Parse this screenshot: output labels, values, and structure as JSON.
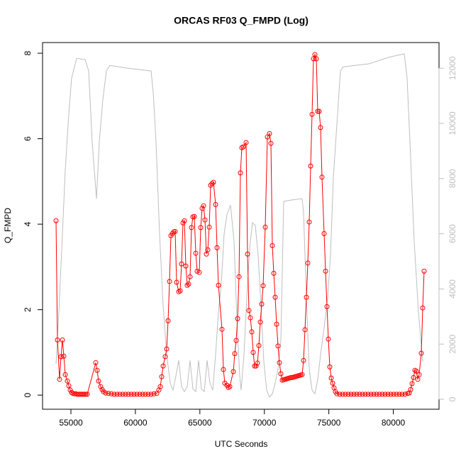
{
  "chart_data": {
    "type": "line",
    "title": "ORCAS RF03 Q_FMPD (Log)",
    "x_label": "UTC Seconds",
    "y_label": "Q_FMPD",
    "xlim": [
      52800,
      83545
    ],
    "xticks": [
      55000,
      60000,
      65000,
      70000,
      75000,
      80000
    ],
    "ylim": [
      -0.33,
      8.25
    ],
    "yticks": [
      0,
      2,
      4,
      6,
      8
    ],
    "y2lim": [
      -360,
      12930
    ],
    "y2ticks": [
      0,
      2000,
      4000,
      6000,
      8000,
      10000,
      12000
    ],
    "y2_color": "#bebebe",
    "series": [
      {
        "color": "#bebebe",
        "axis": "y2",
        "markers": false,
        "x": [
          53845,
          54065,
          54340,
          54560,
          54835,
          55055,
          55440,
          56100,
          56375,
          56650,
          56980,
          57200,
          57475,
          57750,
          58025,
          59400,
          61215,
          61380,
          61600,
          61875,
          62150,
          62425,
          62700,
          62920,
          63140,
          63360,
          63580,
          63800,
          64020,
          64240,
          64460,
          64680,
          64900,
          65120,
          65340,
          65560,
          65780,
          66000,
          66220,
          66440,
          66660,
          66880,
          67100,
          67375,
          67650,
          67870,
          68090,
          68200,
          68420,
          68640,
          68860,
          69080,
          69300,
          69520,
          69740,
          69960,
          70180,
          70400,
          70620,
          70840,
          71060,
          71280,
          71500,
          72050,
          72930,
          73040,
          73260,
          73480,
          73700,
          73920,
          74140,
          74360,
          74580,
          74910,
          75130,
          75350,
          75680,
          75900,
          76120,
          78100,
          79750,
          80850,
          81070,
          81290,
          81620,
          81950,
          82280
        ],
        "values": [
          1285,
          3160,
          5990,
          8300,
          10350,
          11640,
          12360,
          12310,
          11900,
          9330,
          7270,
          9330,
          10870,
          11900,
          12100,
          12000,
          11900,
          11130,
          9330,
          5990,
          3420,
          1620,
          590,
          330,
          850,
          1410,
          460,
          280,
          460,
          1410,
          380,
          280,
          1410,
          380,
          280,
          1410,
          590,
          330,
          1620,
          3160,
          4190,
          5990,
          6700,
          7040,
          5730,
          2900,
          850,
          330,
          1620,
          3680,
          5470,
          6400,
          6300,
          5220,
          3420,
          1360,
          330,
          80,
          200,
          590,
          1100,
          2130,
          7170,
          7220,
          7270,
          6760,
          3680,
          1100,
          330,
          200,
          720,
          1620,
          2390,
          3680,
          5220,
          8040,
          10360,
          11900,
          12050,
          12160,
          12410,
          12520,
          11640,
          9330,
          5730,
          3160,
          1360
        ]
      },
      {
        "color": "#ff0000",
        "markers": true,
        "x": [
          53845,
          53955,
          54120,
          54230,
          54340,
          54450,
          54560,
          54725,
          54835,
          54945,
          55055,
          55165,
          55275,
          55385,
          55495,
          55605,
          55715,
          55825,
          55935,
          56045,
          56155,
          56265,
          56925,
          57035,
          57145,
          57310,
          57420,
          57530,
          57695,
          57915,
          58135,
          58355,
          58575,
          58795,
          59015,
          59235,
          59455,
          59675,
          59895,
          60115,
          60335,
          60555,
          60775,
          60995,
          61215,
          61435,
          61655,
          61820,
          61930,
          62040,
          62150,
          62315,
          62425,
          62535,
          62645,
          62755,
          62865,
          62975,
          63085,
          63195,
          63360,
          63470,
          63580,
          63690,
          63800,
          63910,
          64020,
          64130,
          64240,
          64350,
          64460,
          64570,
          64680,
          64790,
          64955,
          65065,
          65175,
          65285,
          65395,
          65505,
          65615,
          65725,
          65835,
          65945,
          66055,
          66220,
          66330,
          66440,
          66715,
          66825,
          66935,
          67100,
          67210,
          67320,
          67595,
          67705,
          67815,
          67925,
          68035,
          68145,
          68255,
          68365,
          68585,
          68695,
          68805,
          68915,
          69025,
          69135,
          69245,
          69355,
          69465,
          69575,
          69685,
          69795,
          69905,
          70070,
          70235,
          70400,
          70510,
          70620,
          70730,
          70840,
          70950,
          71060,
          71170,
          71280,
          71390,
          71500,
          71610,
          71720,
          71830,
          71940,
          72050,
          72160,
          72270,
          72380,
          72490,
          72600,
          72710,
          72820,
          72930,
          73040,
          73150,
          73260,
          73370,
          73480,
          73590,
          73700,
          73810,
          73920,
          74030,
          74140,
          74250,
          74360,
          74470,
          74635,
          74745,
          74855,
          74965,
          75075,
          75185,
          75295,
          75405,
          75515,
          75625,
          75845,
          76065,
          76285,
          76505,
          76725,
          76945,
          77165,
          77385,
          77605,
          77825,
          78045,
          78265,
          78485,
          78705,
          78925,
          79145,
          79365,
          79585,
          79805,
          80025,
          80245,
          80465,
          80685,
          80905,
          81125,
          81235,
          81345,
          81455,
          81565,
          81675,
          81785,
          81895,
          82005,
          82170,
          82280,
          82390
        ],
        "values": [
          4.08,
          1.29,
          0.37,
          0.9,
          1.29,
          0.91,
          0.48,
          0.33,
          0.22,
          0.12,
          0.06,
          0.04,
          0.03,
          0.03,
          0.02,
          0.02,
          0.02,
          0.02,
          0.02,
          0.02,
          0.02,
          0.02,
          0.76,
          0.58,
          0.33,
          0.2,
          0.13,
          0.08,
          0.05,
          0.04,
          0.03,
          0.02,
          0.02,
          0.02,
          0.02,
          0.02,
          0.02,
          0.02,
          0.02,
          0.02,
          0.02,
          0.02,
          0.02,
          0.02,
          0.02,
          0.03,
          0.04,
          0.12,
          0.2,
          0.43,
          0.68,
          0.9,
          1.08,
          1.74,
          2.66,
          3.73,
          3.78,
          3.82,
          3.83,
          2.64,
          2.42,
          2.44,
          3.07,
          4.03,
          4.08,
          3.02,
          2.57,
          2.6,
          2.77,
          3.92,
          4.17,
          4.18,
          3.32,
          2.9,
          2.87,
          3.92,
          4.37,
          4.43,
          4.1,
          3.3,
          3.4,
          3.93,
          4.91,
          4.95,
          4.98,
          4.46,
          3.45,
          2.57,
          1.54,
          0.6,
          0.28,
          0.23,
          0.18,
          0.2,
          0.55,
          0.97,
          1.28,
          1.79,
          2.77,
          5.2,
          5.79,
          5.81,
          5.91,
          3.3,
          1.98,
          1.81,
          1.48,
          1.0,
          0.68,
          0.68,
          0.75,
          1.16,
          1.71,
          2.13,
          2.56,
          3.93,
          6.04,
          6.12,
          5.89,
          3.5,
          2.85,
          2.29,
          1.66,
          1.15,
          0.76,
          0.5,
          0.35,
          0.36,
          0.37,
          0.38,
          0.39,
          0.4,
          0.41,
          0.41,
          0.42,
          0.43,
          0.44,
          0.45,
          0.46,
          0.47,
          0.48,
          0.81,
          1.53,
          2.29,
          3.09,
          4.05,
          5.36,
          6.57,
          7.87,
          7.97,
          7.87,
          6.64,
          6.64,
          6.26,
          5.1,
          3.78,
          2.9,
          2.07,
          1.31,
          0.66,
          0.4,
          0.28,
          0.17,
          0.08,
          0.03,
          0.02,
          0.02,
          0.02,
          0.02,
          0.02,
          0.02,
          0.02,
          0.02,
          0.02,
          0.02,
          0.02,
          0.02,
          0.02,
          0.02,
          0.02,
          0.02,
          0.02,
          0.02,
          0.02,
          0.02,
          0.02,
          0.02,
          0.02,
          0.02,
          0.04,
          0.05,
          0.13,
          0.27,
          0.41,
          0.58,
          0.56,
          0.37,
          0.48,
          0.98,
          2.04,
          2.9
        ]
      }
    ]
  }
}
